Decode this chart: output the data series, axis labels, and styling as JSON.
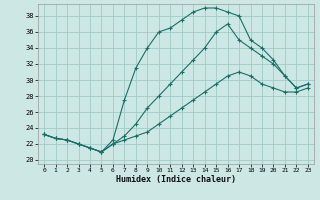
{
  "xlabel": "Humidex (Indice chaleur)",
  "background_color": "#cde8e4",
  "grid_color": "#a0ccc8",
  "line_color": "#1a6e6a",
  "xlim": [
    -0.5,
    23.5
  ],
  "ylim": [
    19.5,
    39.5
  ],
  "xticks": [
    0,
    1,
    2,
    3,
    4,
    5,
    6,
    7,
    8,
    9,
    10,
    11,
    12,
    13,
    14,
    15,
    16,
    17,
    18,
    19,
    20,
    21,
    22,
    23
  ],
  "yticks": [
    20,
    22,
    24,
    26,
    28,
    30,
    32,
    34,
    36,
    38
  ],
  "curve1_x": [
    0,
    1,
    2,
    3,
    4,
    5,
    6,
    7,
    8,
    9,
    10,
    11,
    12,
    13,
    14,
    15,
    16,
    17,
    18,
    19,
    20,
    21,
    22,
    23
  ],
  "curve1_y": [
    23.2,
    22.7,
    22.5,
    22.0,
    21.5,
    21.0,
    22.5,
    27.5,
    31.5,
    34.0,
    36.0,
    36.5,
    37.5,
    38.5,
    39.0,
    39.0,
    38.5,
    38.0,
    35.0,
    34.0,
    32.5,
    30.5,
    29.0,
    29.5
  ],
  "curve2_x": [
    0,
    1,
    2,
    3,
    4,
    5,
    6,
    7,
    8,
    9,
    10,
    11,
    12,
    13,
    14,
    15,
    16,
    17,
    18,
    19,
    20,
    21,
    22,
    23
  ],
  "curve2_y": [
    23.2,
    22.7,
    22.5,
    22.0,
    21.5,
    21.0,
    22.0,
    23.0,
    24.5,
    26.5,
    28.0,
    29.5,
    31.0,
    32.5,
    34.0,
    36.0,
    37.0,
    35.0,
    34.0,
    33.0,
    32.0,
    30.5,
    29.0,
    29.5
  ],
  "curve3_x": [
    0,
    1,
    2,
    3,
    4,
    5,
    6,
    7,
    8,
    9,
    10,
    11,
    12,
    13,
    14,
    15,
    16,
    17,
    18,
    19,
    20,
    21,
    22,
    23
  ],
  "curve3_y": [
    23.2,
    22.7,
    22.5,
    22.0,
    21.5,
    21.0,
    22.0,
    22.5,
    23.0,
    23.5,
    24.5,
    25.5,
    26.5,
    27.5,
    28.5,
    29.5,
    30.5,
    31.0,
    30.5,
    29.5,
    29.0,
    28.5,
    28.5,
    29.0
  ]
}
